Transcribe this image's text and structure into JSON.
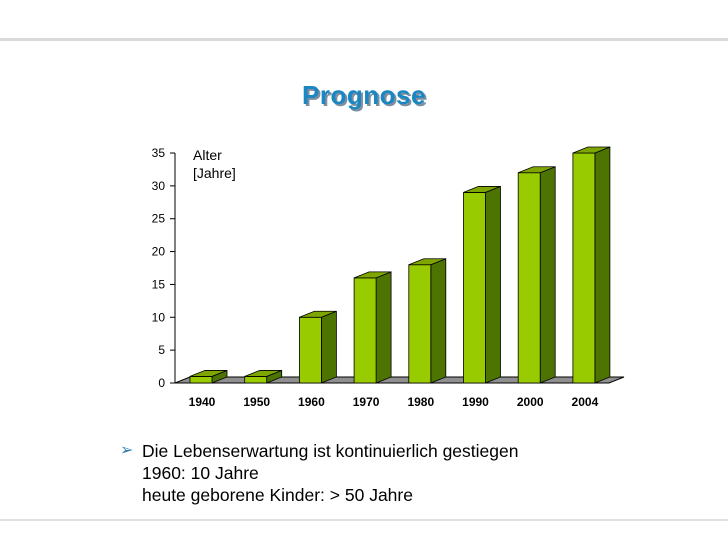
{
  "slide": {
    "title": "Prognose",
    "bullet": {
      "icon": "arrow-bullet",
      "lines": [
        "Die Lebenserwartung ist kontinuierlich gestiegen",
        "1960: 10 Jahre",
        "heute geborene Kinder: > 50 Jahre"
      ]
    }
  },
  "chart_data": {
    "type": "bar",
    "title": "",
    "xlabel": "",
    "ylabel": "Alter\n[Jahre]",
    "ylabel_lines": [
      "Alter",
      "[Jahre]"
    ],
    "categories": [
      "1940",
      "1950",
      "1960",
      "1970",
      "1980",
      "1990",
      "2000",
      "2004"
    ],
    "values": [
      1,
      1,
      10,
      16,
      18,
      29,
      32,
      35
    ],
    "ylim": [
      0,
      35
    ],
    "yticks": [
      0,
      5,
      10,
      15,
      20,
      25,
      30,
      35
    ],
    "grid": false,
    "style": "3d-bars",
    "colors": {
      "bar_front": "#99cc00",
      "bar_side": "#4d7300",
      "bar_top": "#7fa600",
      "floor": "#8f8f8f",
      "title": "#1a86c2"
    }
  }
}
